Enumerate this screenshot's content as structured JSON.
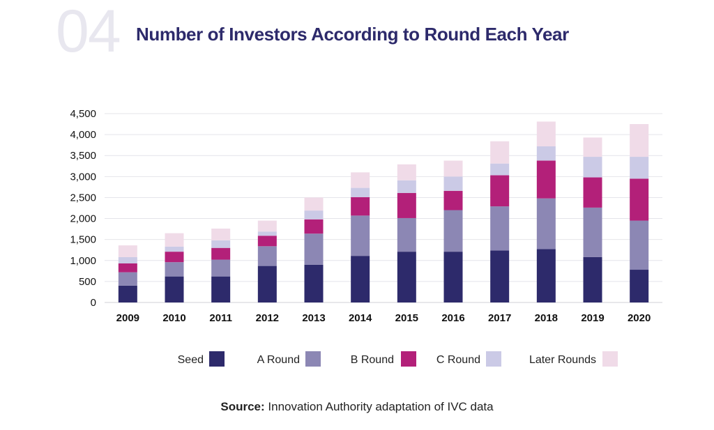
{
  "header": {
    "number": "04",
    "title": "Number of Investors According to Round Each Year"
  },
  "chart_data": {
    "type": "bar",
    "stacked": true,
    "title": "Number of Investors According to Round Each Year",
    "xlabel": "",
    "ylabel": "",
    "ylim": [
      0,
      4500
    ],
    "y_ticks": [
      0,
      500,
      1000,
      1500,
      2000,
      2500,
      3000,
      3500,
      4000,
      4500
    ],
    "y_tick_labels": [
      "0",
      "500",
      "1,000",
      "1,500",
      "2,000",
      "2,500",
      "3,000",
      "3,500",
      "4,000",
      "4,500"
    ],
    "grid": true,
    "legend_position": "bottom",
    "categories": [
      "2009",
      "2010",
      "2011",
      "2012",
      "2013",
      "2014",
      "2015",
      "2016",
      "2017",
      "2018",
      "2019",
      "2020"
    ],
    "series": [
      {
        "name": "Seed",
        "color": "#2d2a6b",
        "values": [
          400,
          620,
          620,
          870,
          900,
          1110,
          1210,
          1210,
          1240,
          1270,
          1080,
          780
        ]
      },
      {
        "name": "A Round",
        "color": "#8c87b4",
        "values": [
          320,
          340,
          400,
          470,
          740,
          960,
          800,
          990,
          1050,
          1210,
          1180,
          1170
        ]
      },
      {
        "name": "B Round",
        "color": "#b32079",
        "values": [
          210,
          250,
          280,
          250,
          340,
          440,
          600,
          460,
          740,
          900,
          720,
          1000
        ]
      },
      {
        "name": "C Round",
        "color": "#cbcae6",
        "values": [
          150,
          120,
          180,
          100,
          210,
          220,
          300,
          340,
          280,
          340,
          490,
          520
        ]
      },
      {
        "name": "Later Rounds",
        "color": "#f0dbe8",
        "values": [
          280,
          320,
          280,
          260,
          310,
          370,
          380,
          380,
          530,
          590,
          460,
          780
        ]
      }
    ]
  },
  "source": {
    "label": "Source:",
    "text": "Innovation Authority adaptation of IVC data"
  }
}
